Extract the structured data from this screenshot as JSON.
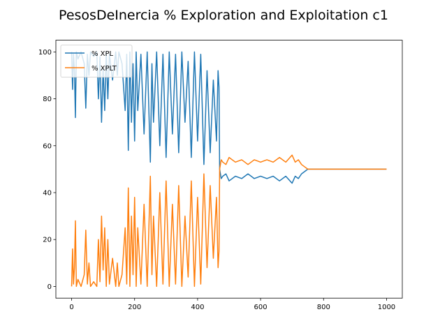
{
  "chart_data": {
    "type": "line",
    "title": "PesosDeInercia % Exploration and Exploitation c1",
    "xlabel": "",
    "ylabel": "",
    "xlim": [
      -50,
      1050
    ],
    "ylim": [
      -5,
      105
    ],
    "x_ticks": [
      0,
      200,
      400,
      600,
      800,
      1000
    ],
    "y_ticks": [
      0,
      20,
      40,
      60,
      80,
      100
    ],
    "x_tick_labels": [
      "0",
      "200",
      "400",
      "600",
      "800",
      "1000"
    ],
    "y_tick_labels": [
      "0",
      "20",
      "40",
      "60",
      "80",
      "100"
    ],
    "grid": false,
    "legend_position": "top-left",
    "series": [
      {
        "name": "% XPL",
        "color": "#1f77b4",
        "x": [
          0,
          3,
          6,
          9,
          12,
          15,
          20,
          30,
          40,
          45,
          50,
          55,
          60,
          70,
          80,
          85,
          90,
          95,
          100,
          105,
          110,
          115,
          120,
          130,
          140,
          145,
          150,
          160,
          170,
          175,
          180,
          185,
          190,
          195,
          200,
          205,
          210,
          220,
          230,
          240,
          250,
          255,
          260,
          270,
          280,
          290,
          300,
          310,
          320,
          330,
          340,
          350,
          360,
          370,
          380,
          390,
          400,
          410,
          420,
          430,
          440,
          450,
          460,
          465,
          468,
          470,
          475,
          480,
          490,
          500,
          520,
          540,
          560,
          580,
          600,
          620,
          640,
          660,
          680,
          700,
          710,
          720,
          730,
          740,
          750,
          760,
          800,
          850,
          900,
          950,
          1000
        ],
        "y": [
          100,
          84,
          99,
          92,
          72,
          100,
          97,
          100,
          95,
          76,
          99,
          90,
          100,
          98,
          100,
          80,
          98,
          70,
          93,
          75,
          100,
          80,
          99,
          88,
          100,
          90,
          100,
          95,
          75,
          99,
          58,
          100,
          70,
          95,
          62,
          100,
          75,
          99,
          65,
          100,
          53,
          95,
          70,
          100,
          60,
          99,
          55,
          100,
          65,
          99,
          57,
          100,
          70,
          96,
          55,
          100,
          62,
          99,
          52,
          92,
          57,
          88,
          62,
          92,
          85,
          50,
          46,
          47,
          48,
          45,
          47,
          46,
          48,
          46,
          47,
          46,
          47,
          45,
          47,
          44,
          47,
          46,
          48,
          49,
          50,
          50,
          50,
          50,
          50,
          50,
          50
        ]
      },
      {
        "name": "% XPLT",
        "color": "#ff7f0e",
        "x": [
          0,
          3,
          6,
          9,
          12,
          15,
          20,
          30,
          40,
          45,
          50,
          55,
          60,
          70,
          80,
          85,
          90,
          95,
          100,
          105,
          110,
          115,
          120,
          130,
          140,
          145,
          150,
          160,
          170,
          175,
          180,
          185,
          190,
          195,
          200,
          205,
          210,
          220,
          230,
          240,
          250,
          255,
          260,
          270,
          280,
          290,
          300,
          310,
          320,
          330,
          340,
          350,
          360,
          370,
          380,
          390,
          400,
          410,
          420,
          430,
          440,
          450,
          460,
          465,
          468,
          470,
          475,
          480,
          490,
          500,
          520,
          540,
          560,
          580,
          600,
          620,
          640,
          660,
          680,
          700,
          710,
          720,
          730,
          740,
          750,
          760,
          800,
          850,
          900,
          950,
          1000
        ],
        "y": [
          0,
          16,
          1,
          8,
          28,
          0,
          3,
          0,
          5,
          24,
          1,
          10,
          0,
          2,
          0,
          20,
          2,
          30,
          7,
          25,
          0,
          20,
          1,
          12,
          0,
          10,
          0,
          5,
          25,
          1,
          42,
          0,
          30,
          5,
          38,
          0,
          25,
          1,
          35,
          0,
          47,
          5,
          30,
          0,
          40,
          1,
          45,
          0,
          35,
          1,
          43,
          0,
          30,
          4,
          45,
          0,
          38,
          1,
          48,
          8,
          43,
          12,
          38,
          8,
          15,
          50,
          54,
          53,
          52,
          55,
          53,
          54,
          52,
          54,
          53,
          54,
          53,
          55,
          53,
          56,
          53,
          54,
          52,
          51,
          50,
          50,
          50,
          50,
          50,
          50,
          50
        ]
      }
    ]
  }
}
